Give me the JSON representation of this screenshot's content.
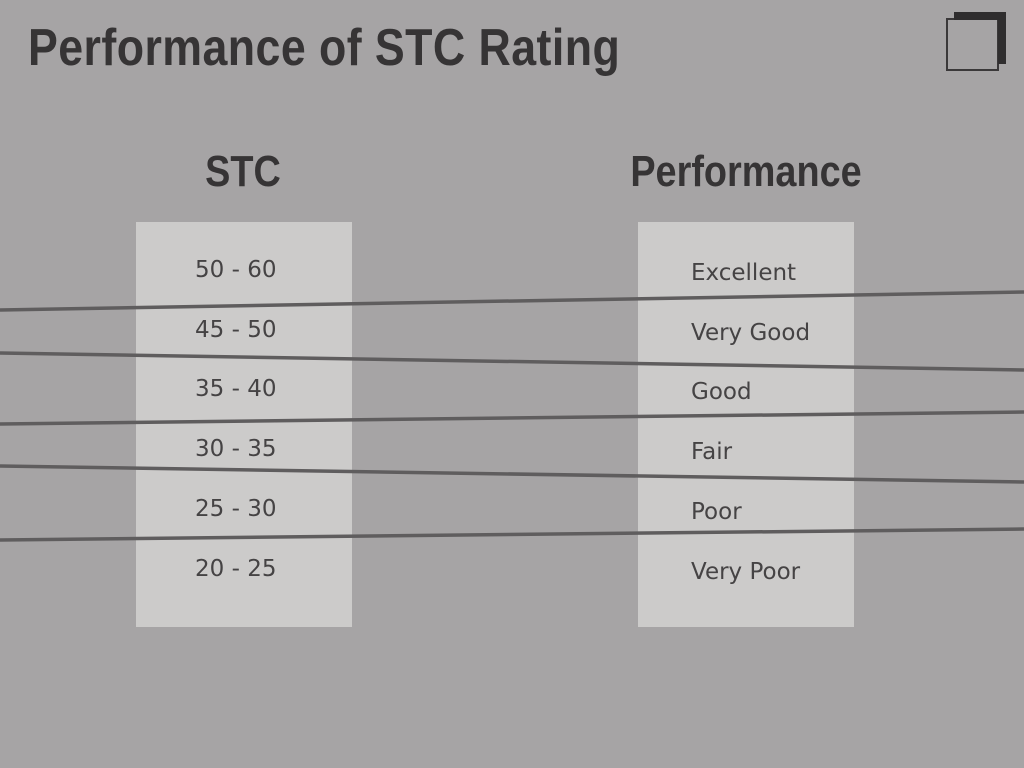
{
  "title": "Performance of STC Rating",
  "headers": {
    "stc": "STC",
    "performance": "Performance"
  },
  "stc_values": [
    "50 - 60",
    "45 - 50",
    "35 - 40",
    "30 - 35",
    "25 - 30",
    "20 - 25"
  ],
  "performance_values": [
    "Excellent",
    "Very Good",
    "Good",
    "Fair",
    "Poor",
    "Very Poor"
  ],
  "logo_icon": "corner-bracket-icon",
  "colors": {
    "background": "#a6a4a5",
    "text_dark": "#363435",
    "box_fill": "#cccbca",
    "line": "#5f5d5e"
  }
}
